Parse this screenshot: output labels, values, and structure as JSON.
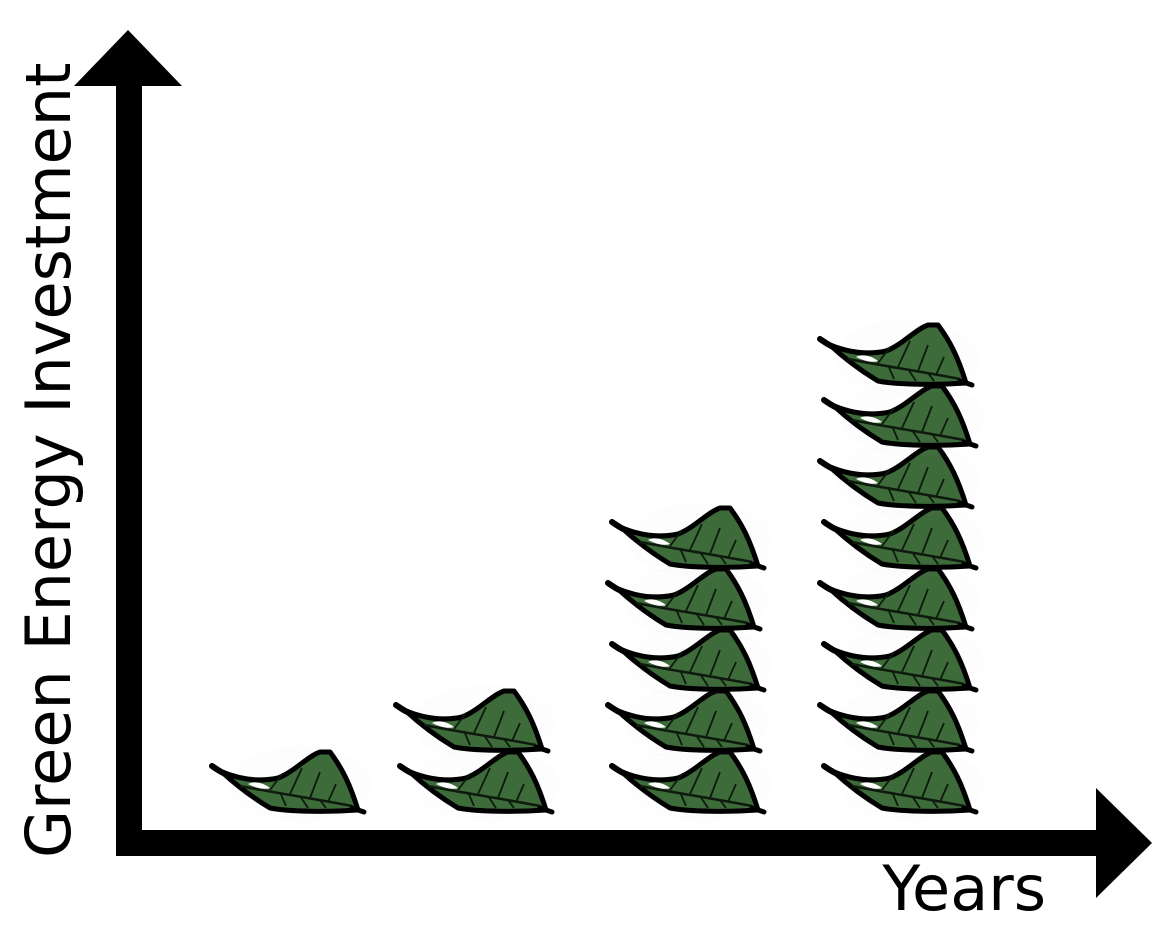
{
  "chart_data": {
    "type": "bar",
    "style": "pictograph",
    "icon": "leaf-icon",
    "categories": [
      "",
      "",
      "",
      ""
    ],
    "values": [
      1,
      2,
      5,
      8
    ],
    "xlabel": "Years",
    "ylabel": "Green Energy Investment",
    "ylim": [
      0,
      12
    ],
    "grid": false,
    "legend": "none"
  },
  "colors": {
    "axis": "#000000",
    "leaf_fill": "#3e6b3a",
    "leaf_outline": "#000000",
    "leaf_vein": "#0d1a0d",
    "leaf_highlight": "#ffffff",
    "background": "#ffffff"
  }
}
